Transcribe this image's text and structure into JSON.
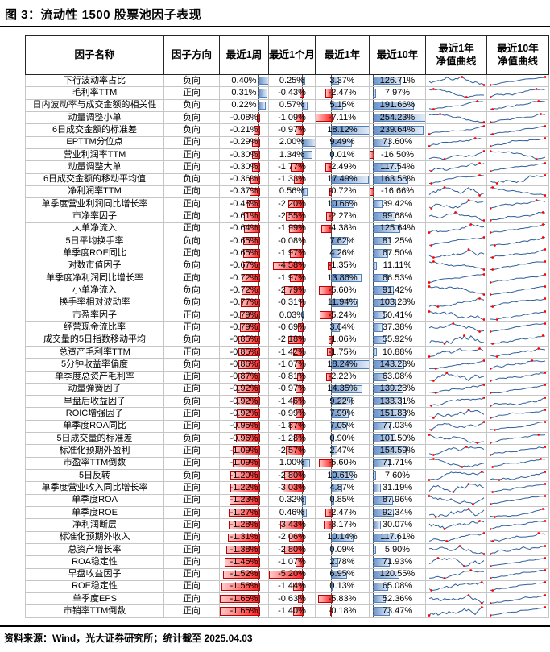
{
  "figure": {
    "title": "图 3：流动性 1500 股票池因子表现"
  },
  "source_note": "资料来源：Wind，光大证券研究所；统计截至 2025.04.03",
  "table": {
    "headers": {
      "factor_name": "因子名称",
      "direction": "因子方向",
      "week1": "最近1周",
      "month1": "最近1个月",
      "year1": "最近1年",
      "year10": "最近10年",
      "curve1y": "最近1年\n净值曲线",
      "curve10y": "最近10年\n净值曲线"
    },
    "rows": [
      [
        "下行波动率占比",
        "负向",
        "0.40%",
        "0.25%",
        "3.37%",
        "126.71%"
      ],
      [
        "毛利率TTM",
        "正向",
        "0.31%",
        "-0.43%",
        "-2.47%",
        "7.97%"
      ],
      [
        "日内波动率与成交金额的相关性",
        "负向",
        "0.22%",
        "0.57%",
        "5.15%",
        "191.66%"
      ],
      [
        "动量调整小单",
        "负向",
        "-0.08%",
        "-1.09%",
        "-7.11%",
        "254.23%"
      ],
      [
        "6日成交金额的标准差",
        "负向",
        "-0.21%",
        "-0.97%",
        "18.12%",
        "239.64%"
      ],
      [
        "EPTTM分位点",
        "正向",
        "-0.29%",
        "2.00%",
        "9.49%",
        "73.60%"
      ],
      [
        "营业利润率TTM",
        "正向",
        "-0.30%",
        "1.34%",
        "0.01%",
        "-16.50%"
      ],
      [
        "动量调整大单",
        "正向",
        "-0.30%",
        "-1.77%",
        "-2.49%",
        "117.54%"
      ],
      [
        "6日成交金额的移动平均值",
        "负向",
        "-0.36%",
        "-1.33%",
        "17.49%",
        "163.58%"
      ],
      [
        "净利润率TTM",
        "正向",
        "-0.37%",
        "0.56%",
        "-0.72%",
        "-16.66%"
      ],
      [
        "单季度营业利润同比增长率",
        "正向",
        "-0.48%",
        "-2.20%",
        "10.66%",
        "39.42%"
      ],
      [
        "市净率因子",
        "正向",
        "-0.61%",
        "-2.55%",
        "-2.27%",
        "99.68%"
      ],
      [
        "大单净流入",
        "正向",
        "-0.64%",
        "-1.99%",
        "-4.38%",
        "125.64%"
      ],
      [
        "5日平均换手率",
        "负向",
        "-0.65%",
        "-0.08%",
        "7.62%",
        "81.25%"
      ],
      [
        "单季度ROE同比",
        "正向",
        "-0.65%",
        "-1.97%",
        "4.26%",
        "67.50%"
      ],
      [
        "对数市值因子",
        "负向",
        "-0.67%",
        "-4.58%",
        "-1.35%",
        "11.11%"
      ],
      [
        "单季度净利润同比增长率",
        "正向",
        "-0.72%",
        "-1.97%",
        "13.86%",
        "66.53%"
      ],
      [
        "小单净流入",
        "负向",
        "-0.72%",
        "-2.79%",
        "-5.60%",
        "91.42%"
      ],
      [
        "换手率相对波动率",
        "负向",
        "-0.77%",
        "-0.31%",
        "11.94%",
        "103.28%"
      ],
      [
        "市盈率因子",
        "正向",
        "-0.79%",
        "0.03%",
        "-5.24%",
        "50.41%"
      ],
      [
        "经营现金流比率",
        "正向",
        "-0.79%",
        "-0.69%",
        "3.64%",
        "37.38%"
      ],
      [
        "成交量的5日指数移动平均",
        "负向",
        "-0.85%",
        "-2.18%",
        "-1.06%",
        "55.92%"
      ],
      [
        "总资产毛利率TTM",
        "正向",
        "-0.85%",
        "-1.42%",
        "-1.75%",
        "10.88%"
      ],
      [
        "5分钟收益率偏度",
        "负向",
        "-0.86%",
        "-1.07%",
        "18.24%",
        "143.28%"
      ],
      [
        "单季度总资产毛利率",
        "正向",
        "-0.87%",
        "-0.81%",
        "-2.22%",
        "63.08%"
      ],
      [
        "动量弹簧因子",
        "正向",
        "-0.92%",
        "-0.97%",
        "14.35%",
        "139.28%"
      ],
      [
        "早盘后收益因子",
        "负向",
        "-0.92%",
        "-1.46%",
        "9.22%",
        "133.31%"
      ],
      [
        "ROIC增强因子",
        "正向",
        "-0.92%",
        "-0.99%",
        "7.99%",
        "151.83%"
      ],
      [
        "单季度ROA同比",
        "正向",
        "-0.95%",
        "-1.87%",
        "7.05%",
        "77.03%"
      ],
      [
        "5日成交量的标准差",
        "负向",
        "-0.96%",
        "-1.28%",
        "0.90%",
        "101.50%"
      ],
      [
        "标准化预期外盈利",
        "正向",
        "-1.09%",
        "-2.57%",
        "2.47%",
        "154.59%"
      ],
      [
        "市盈率TTM倒数",
        "正向",
        "-1.09%",
        "1.00%",
        "-5.60%",
        "71.71%"
      ],
      [
        "5日反转",
        "负向",
        "-1.20%",
        "-2.80%",
        "10.61%",
        "7.60%"
      ],
      [
        "单季度营业收入同比增长率",
        "正向",
        "-1.22%",
        "-3.03%",
        "4.87%",
        "31.19%"
      ],
      [
        "单季度ROA",
        "正向",
        "-1.23%",
        "0.32%",
        "0.85%",
        "87.96%"
      ],
      [
        "单季度ROE",
        "正向",
        "-1.27%",
        "0.46%",
        "-2.47%",
        "92.34%"
      ],
      [
        "净利润断层",
        "正向",
        "-1.28%",
        "-3.43%",
        "-3.17%",
        "30.07%"
      ],
      [
        "标准化预期外收入",
        "正向",
        "-1.31%",
        "-2.06%",
        "10.14%",
        "117.61%"
      ],
      [
        "总资产增长率",
        "正向",
        "-1.38%",
        "-2.80%",
        "0.09%",
        "5.90%"
      ],
      [
        "ROA稳定性",
        "正向",
        "-1.45%",
        "-1.07%",
        "2.78%",
        "71.93%"
      ],
      [
        "早盘收益因子",
        "正向",
        "-1.52%",
        "-5.20%",
        "6.95%",
        "120.55%"
      ],
      [
        "ROE稳定性",
        "正向",
        "-1.58%",
        "-1.44%",
        "0.13%",
        "65.08%"
      ],
      [
        "单季度EPS",
        "正向",
        "-1.65%",
        "-0.63%",
        "-5.83%",
        "52.36%"
      ],
      [
        "市销率TTM倒数",
        "正向",
        "-1.65%",
        "-1.40%",
        "-0.18%",
        "73.47%"
      ]
    ]
  },
  "colors": {
    "positive_bar_fill_start": "#6b93ca",
    "positive_bar_fill_end": "#e3ecf8",
    "positive_bar_border": "#4f81bd",
    "negative_bar_fill_start": "#ffc9c9",
    "negative_bar_fill_end": "#ff2020",
    "negative_bar_border": "#c00000",
    "sparkline_line": "#31609b",
    "sparkline_marker": "#ff0000",
    "axis_dash": "#4a4a4a"
  }
}
